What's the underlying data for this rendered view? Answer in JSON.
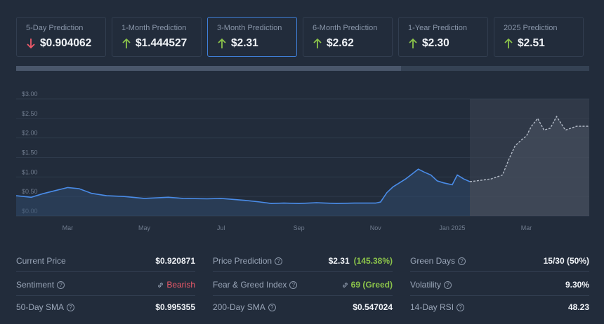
{
  "cards": [
    {
      "label": "5-Day Prediction",
      "value": "$0.904062",
      "direction": "down"
    },
    {
      "label": "1-Month Prediction",
      "value": "$1.444527",
      "direction": "up"
    },
    {
      "label": "3-Month Prediction",
      "value": "$2.31",
      "direction": "up",
      "active": true
    },
    {
      "label": "6-Month Prediction",
      "value": "$2.62",
      "direction": "up"
    },
    {
      "label": "1-Year Prediction",
      "value": "$2.30",
      "direction": "up"
    },
    {
      "label": "2025 Prediction",
      "value": "$2.51",
      "direction": "up"
    }
  ],
  "colors": {
    "up": "#8bc34a",
    "down": "#ef5a6a",
    "accent": "#3f7fd8",
    "history_line": "#4a8ce8",
    "forecast_line": "#b4bcc8"
  },
  "chart_data": {
    "type": "line",
    "yticks": [
      "$3.00",
      "$2.50",
      "$2.00",
      "$1.50",
      "$1.00",
      "$0.50",
      "$0.00"
    ],
    "ylim": [
      0,
      3
    ],
    "xticks": [
      "Mar",
      "May",
      "Jul",
      "Sep",
      "Nov",
      "Jan 2025",
      "Mar"
    ],
    "grid": true,
    "series": [
      {
        "kind": "history",
        "x": [
          "2024-01-20",
          "2024-02-01",
          "2024-02-10",
          "2024-02-20",
          "2024-03-01",
          "2024-03-10",
          "2024-03-20",
          "2024-04-01",
          "2024-04-15",
          "2024-05-01",
          "2024-05-20",
          "2024-06-01",
          "2024-06-20",
          "2024-07-01",
          "2024-07-20",
          "2024-08-01",
          "2024-08-10",
          "2024-08-20",
          "2024-09-01",
          "2024-09-15",
          "2024-10-01",
          "2024-10-15",
          "2024-11-01",
          "2024-11-05",
          "2024-11-10",
          "2024-11-15",
          "2024-11-20",
          "2024-11-25",
          "2024-12-01",
          "2024-12-05",
          "2024-12-10",
          "2024-12-15",
          "2024-12-20",
          "2024-12-25",
          "2025-01-01",
          "2025-01-05",
          "2025-01-10",
          "2025-01-15"
        ],
        "values": [
          0.52,
          0.48,
          0.57,
          0.65,
          0.73,
          0.7,
          0.58,
          0.52,
          0.5,
          0.45,
          0.48,
          0.45,
          0.44,
          0.45,
          0.4,
          0.36,
          0.32,
          0.33,
          0.32,
          0.34,
          0.32,
          0.33,
          0.33,
          0.36,
          0.6,
          0.75,
          0.85,
          0.95,
          1.1,
          1.2,
          1.12,
          1.05,
          0.9,
          0.85,
          0.8,
          1.05,
          0.95,
          0.88
        ]
      },
      {
        "kind": "forecast",
        "x": [
          "2025-01-15",
          "2025-01-25",
          "2025-02-01",
          "2025-02-10",
          "2025-02-15",
          "2025-02-20",
          "2025-02-25",
          "2025-03-01",
          "2025-03-05",
          "2025-03-10",
          "2025-03-15",
          "2025-03-20",
          "2025-03-25",
          "2025-04-01",
          "2025-04-10",
          "2025-04-20"
        ],
        "values": [
          0.88,
          0.92,
          0.95,
          1.05,
          1.45,
          1.8,
          1.95,
          2.05,
          2.3,
          2.5,
          2.2,
          2.25,
          2.55,
          2.2,
          2.3,
          2.3
        ]
      }
    ]
  },
  "stats": {
    "current_price": {
      "label": "Current Price",
      "value": "$0.920871"
    },
    "price_prediction": {
      "label": "Price Prediction",
      "value": "$2.31",
      "pct": "(145.38%)"
    },
    "green_days": {
      "label": "Green Days",
      "value": "15/30 (50%)"
    },
    "sentiment": {
      "label": "Sentiment",
      "value": "Bearish"
    },
    "fear_greed": {
      "label": "Fear & Greed Index",
      "value": "69 (Greed)"
    },
    "volatility": {
      "label": "Volatility",
      "value": "9.30%"
    },
    "sma50": {
      "label": "50-Day SMA",
      "value": "$0.995355"
    },
    "sma200": {
      "label": "200-Day SMA",
      "value": "$0.547024"
    },
    "rsi": {
      "label": "14-Day RSI",
      "value": "48.23"
    }
  }
}
